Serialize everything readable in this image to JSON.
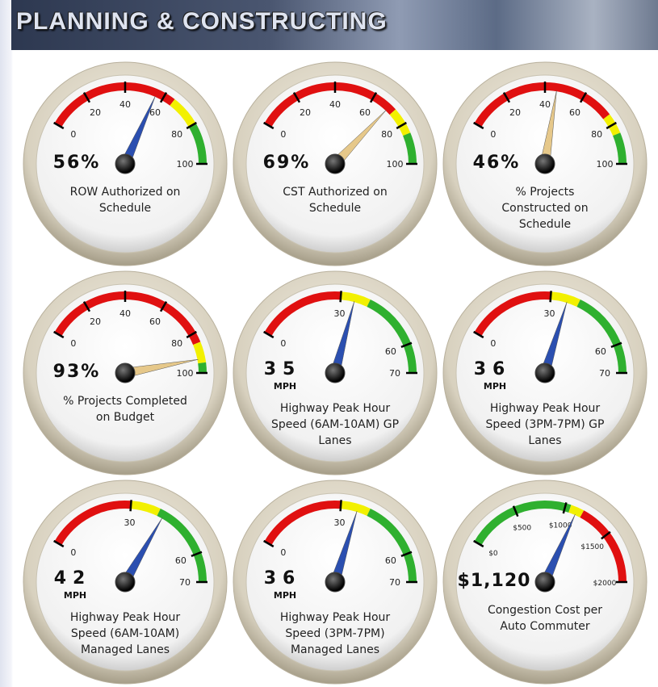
{
  "header": {
    "title": "PLANNING & CONSTRUCTING"
  },
  "chart_data": [
    {
      "type": "gauge",
      "title": "ROW Authorized on Schedule",
      "value": 56,
      "value_label": "56%",
      "ylim": [
        0,
        100
      ],
      "yticks": [
        0,
        20,
        40,
        60,
        80,
        100
      ],
      "needle_color": "#2b4fb0",
      "bands": [
        {
          "from": 0,
          "to": 65,
          "color": "#e01010"
        },
        {
          "from": 65,
          "to": 80,
          "color": "#f2f000"
        },
        {
          "from": 80,
          "to": 100,
          "color": "#2fb02f"
        }
      ]
    },
    {
      "type": "gauge",
      "title": "CST Authorized on Schedule",
      "value": 69,
      "value_label": "69%",
      "ylim": [
        0,
        100
      ],
      "yticks": [
        0,
        20,
        40,
        60,
        80,
        100
      ],
      "needle_color": "#e6c88a",
      "bands": [
        {
          "from": 0,
          "to": 72,
          "color": "#e01010"
        },
        {
          "from": 72,
          "to": 85,
          "color": "#f2f000"
        },
        {
          "from": 85,
          "to": 100,
          "color": "#2fb02f"
        }
      ]
    },
    {
      "type": "gauge",
      "title": "% Projects Constructed on Schedule",
      "value": 46,
      "value_label": "46%",
      "ylim": [
        0,
        100
      ],
      "yticks": [
        0,
        20,
        40,
        60,
        80,
        100
      ],
      "needle_color": "#e6c88a",
      "bands": [
        {
          "from": 0,
          "to": 75,
          "color": "#e01010"
        },
        {
          "from": 75,
          "to": 85,
          "color": "#f2f000"
        },
        {
          "from": 85,
          "to": 100,
          "color": "#2fb02f"
        }
      ]
    },
    {
      "type": "gauge",
      "title": "% Projects Completed on Budget",
      "value": 93,
      "value_label": "93%",
      "ylim": [
        0,
        100
      ],
      "yticks": [
        0,
        20,
        40,
        60,
        80,
        100
      ],
      "needle_color": "#e6c88a",
      "bands": [
        {
          "from": 0,
          "to": 85,
          "color": "#e01010"
        },
        {
          "from": 85,
          "to": 95,
          "color": "#f2f000"
        },
        {
          "from": 95,
          "to": 100,
          "color": "#2fb02f"
        }
      ]
    },
    {
      "type": "gauge",
      "title": "Highway Peak Hour Speed (6AM-10AM) GP Lanes",
      "value": 35,
      "unit": "MPH",
      "ylim": [
        0,
        70
      ],
      "yticks": [
        0,
        30,
        60,
        70
      ],
      "needle_color": "#2b4fb0",
      "bands": [
        {
          "from": 0,
          "to": 30,
          "color": "#e01010"
        },
        {
          "from": 30,
          "to": 40,
          "color": "#f2f000"
        },
        {
          "from": 40,
          "to": 70,
          "color": "#2fb02f"
        }
      ]
    },
    {
      "type": "gauge",
      "title": "Highway Peak Hour Speed (3PM-7PM) GP Lanes",
      "value": 36,
      "unit": "MPH",
      "ylim": [
        0,
        70
      ],
      "yticks": [
        0,
        30,
        60,
        70
      ],
      "needle_color": "#2b4fb0",
      "bands": [
        {
          "from": 0,
          "to": 30,
          "color": "#e01010"
        },
        {
          "from": 30,
          "to": 40,
          "color": "#f2f000"
        },
        {
          "from": 40,
          "to": 70,
          "color": "#2fb02f"
        }
      ]
    },
    {
      "type": "gauge",
      "title": "Highway Peak Hour Speed (6AM-10AM) Managed Lanes",
      "value": 42,
      "unit": "MPH",
      "ylim": [
        0,
        70
      ],
      "yticks": [
        0,
        30,
        60,
        70
      ],
      "needle_color": "#2b4fb0",
      "bands": [
        {
          "from": 0,
          "to": 30,
          "color": "#e01010"
        },
        {
          "from": 30,
          "to": 40,
          "color": "#f2f000"
        },
        {
          "from": 40,
          "to": 70,
          "color": "#2fb02f"
        }
      ]
    },
    {
      "type": "gauge",
      "title": "Highway Peak Hour Speed (3PM-7PM) Managed Lanes",
      "value": 36,
      "unit": "MPH",
      "ylim": [
        0,
        70
      ],
      "yticks": [
        0,
        30,
        60,
        70
      ],
      "needle_color": "#2b4fb0",
      "bands": [
        {
          "from": 0,
          "to": 30,
          "color": "#e01010"
        },
        {
          "from": 30,
          "to": 40,
          "color": "#f2f000"
        },
        {
          "from": 40,
          "to": 70,
          "color": "#2fb02f"
        }
      ]
    },
    {
      "type": "gauge",
      "title": "Congestion Cost per Auto Commuter",
      "value": 1120,
      "value_label": "$1,120",
      "ylim": [
        0,
        2000
      ],
      "yticks": [
        {
          "value": 0,
          "label": "$0"
        },
        {
          "value": 500,
          "label": "$500"
        },
        {
          "value": 1000,
          "label": "$1000"
        },
        {
          "value": 1500,
          "label": "$1500"
        },
        {
          "value": 2000,
          "label": "$2000"
        }
      ],
      "needle_color": "#2b4fb0",
      "bands": [
        {
          "from": 0,
          "to": 1050,
          "color": "#2fb02f"
        },
        {
          "from": 1050,
          "to": 1180,
          "color": "#f2f000"
        },
        {
          "from": 1180,
          "to": 2000,
          "color": "#e01010"
        }
      ]
    }
  ]
}
